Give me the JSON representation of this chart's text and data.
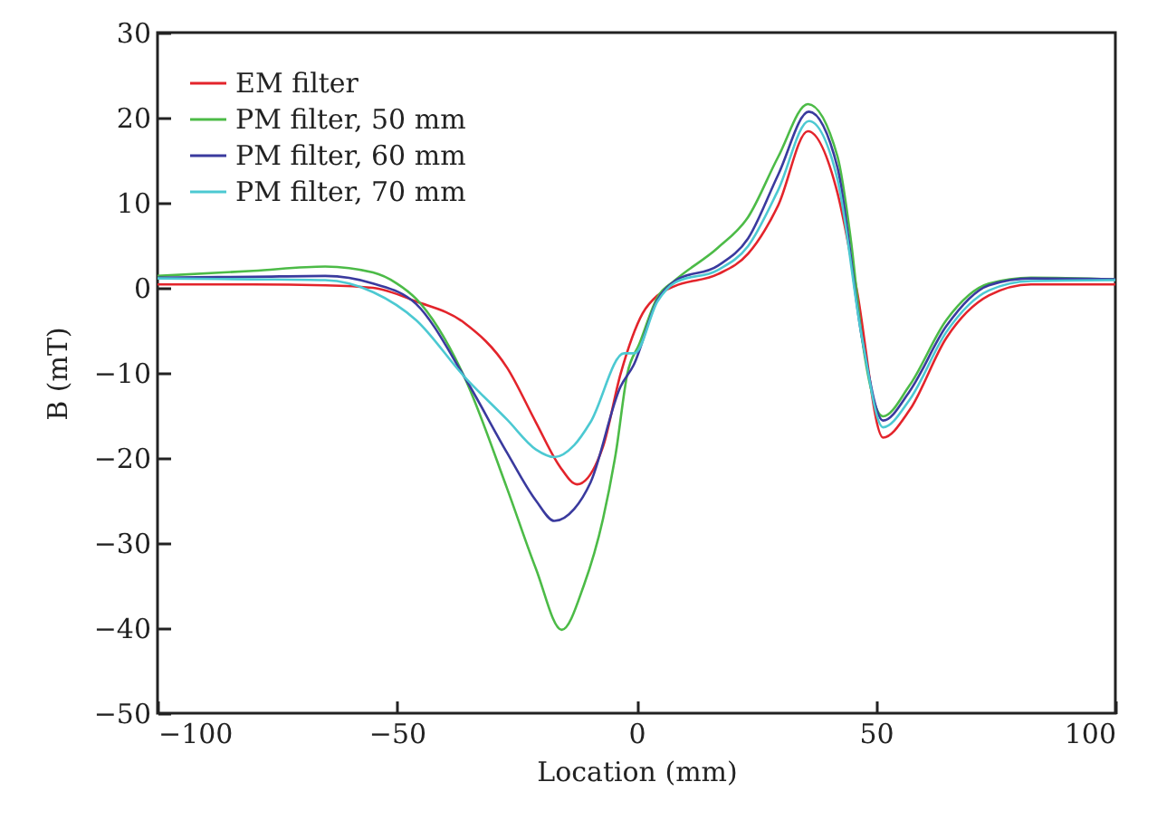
{
  "chart_data": {
    "type": "line",
    "xlabel": "Location (mm)",
    "ylabel": "B (mT)",
    "xlim": [
      -100,
      100
    ],
    "xticks": [
      -100,
      -50,
      0,
      50,
      100
    ],
    "ylim": [
      -50,
      30
    ],
    "yticks": [
      -50,
      -40,
      -30,
      -20,
      -10,
      0,
      10,
      20,
      30
    ],
    "grid": false,
    "legend": "top left",
    "marker": "none",
    "line_style": "solid",
    "series": [
      {
        "name": "EM filter",
        "color": "#e3242b",
        "x": [
          -100,
          -80,
          -65,
          -55,
          -46,
          -36,
          -27,
          -21,
          -16,
          -12.4,
          -7,
          -3.3,
          1.3,
          4.4,
          8,
          17,
          23.3,
          29.6,
          35.8,
          42,
          46,
          51.5,
          57,
          64.7,
          73.6,
          82.4,
          100
        ],
        "values": [
          0.4,
          0.4,
          0.3,
          0,
          -1.6,
          -4.1,
          -9.4,
          -15.8,
          -21,
          -23.1,
          -18.7,
          -10.1,
          -3,
          -0.9,
          0.2,
          1.6,
          4,
          9.7,
          18.4,
          11.1,
          -0.2,
          -17.6,
          -14.4,
          -5.9,
          -0.9,
          0.4,
          0.4
        ]
      },
      {
        "name": "PM filter, 50 mm",
        "color": "#4cbb47",
        "x": [
          -100,
          -80,
          -65,
          -55,
          -50,
          -46,
          -36,
          -27,
          -21,
          -15.6,
          -11,
          -7,
          -4.3,
          -1.9,
          0.6,
          4.4,
          8.1,
          17,
          23.3,
          29.6,
          35.8,
          42,
          44.8,
          47.1,
          51.5,
          57,
          64.7,
          73.6,
          82.4,
          100
        ],
        "values": [
          1.4,
          2,
          2.5,
          1.8,
          0.5,
          -1.3,
          -10.4,
          -23.6,
          -33,
          -40.2,
          -35,
          -27.2,
          -19.4,
          -10.1,
          -6.6,
          -1.1,
          0.9,
          4.7,
          8.3,
          15.4,
          21.6,
          15.4,
          5.5,
          -5.9,
          -15.1,
          -11.5,
          -3.8,
          0.5,
          1.2,
          1
        ]
      },
      {
        "name": "PM filter, 60 mm",
        "color": "#3a3a9e",
        "x": [
          -100,
          -80,
          -65,
          -55,
          -46,
          -36,
          -27,
          -21,
          -17.1,
          -13,
          -9.6,
          -3.3,
          -0.6,
          4.4,
          8,
          17,
          23.3,
          29.6,
          36,
          42,
          47.1,
          51.5,
          57,
          64.7,
          73.6,
          82.4,
          100
        ],
        "values": [
          1.2,
          1.3,
          1.4,
          0.5,
          -1.9,
          -10.4,
          -19.4,
          -25,
          -27.4,
          -26,
          -22.9,
          -11.6,
          -9.1,
          -1.4,
          0.8,
          2.6,
          5.8,
          13.3,
          20.7,
          14.1,
          -5.9,
          -15.6,
          -12.2,
          -4.5,
          0.3,
          1.1,
          1
        ]
      },
      {
        "name": "PM filter, 70 mm",
        "color": "#4cc9d2",
        "x": [
          -100,
          -80,
          -65,
          -55,
          -46,
          -36,
          -27,
          -21,
          -17.1,
          -13,
          -9.6,
          -2.6,
          -0.4,
          4.4,
          8,
          17,
          23.3,
          29.6,
          36,
          42,
          47.1,
          51.5,
          57,
          64.7,
          73.6,
          82.4,
          100
        ],
        "values": [
          1.1,
          1,
          0.9,
          -0.5,
          -3.8,
          -10.4,
          -15.5,
          -19,
          -19.9,
          -18.5,
          -15.8,
          -7.7,
          -7.7,
          -1.6,
          0.6,
          2.1,
          4.9,
          11.5,
          19.6,
          12.7,
          -5.9,
          -16.4,
          -13.2,
          -5.2,
          -0.3,
          0.8,
          0.9
        ]
      }
    ]
  }
}
